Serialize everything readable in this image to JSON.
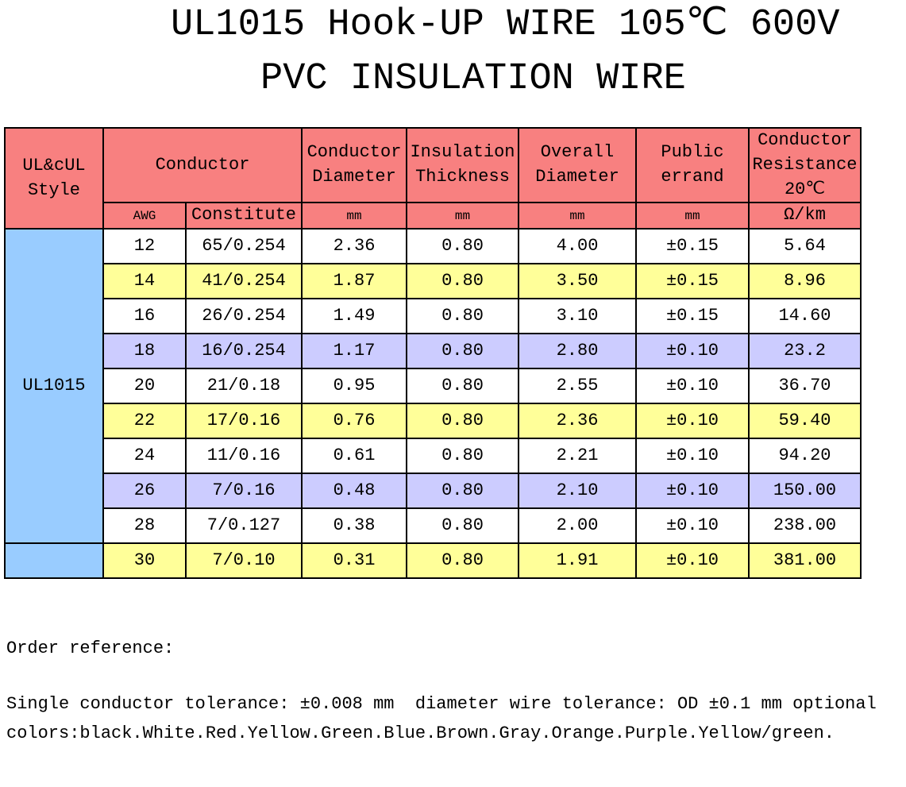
{
  "header": {
    "title_line1": "UL1015 Hook-UP WIRE 105℃ 600V",
    "title_line2": "PVC INSULATION WIRE"
  },
  "table": {
    "header_row1": [
      "UL&cUL Style",
      "Conductor",
      "Conductor Diameter",
      "Insulation Thickness",
      "Overall Diameter",
      "Public errand",
      "Conductor Resistance 20℃"
    ],
    "header_row2": [
      "AWG",
      "Constitute",
      "mm",
      "mm",
      "mm",
      "mm",
      "Ω/km"
    ],
    "style": "UL1015",
    "rows": [
      [
        "12",
        "65/0.254",
        "2.36",
        "0.80",
        "4.00",
        "±0.15",
        "5.64"
      ],
      [
        "14",
        "41/0.254",
        "1.87",
        "0.80",
        "3.50",
        "±0.15",
        "8.96"
      ],
      [
        "16",
        "26/0.254",
        "1.49",
        "0.80",
        "3.10",
        "±0.15",
        "14.60"
      ],
      [
        "18",
        "16/0.254",
        "1.17",
        "0.80",
        "2.80",
        "±0.10",
        "23.2"
      ],
      [
        "20",
        "21/0.18",
        "0.95",
        "0.80",
        "2.55",
        "±0.10",
        "36.70"
      ],
      [
        "22",
        "17/0.16",
        "0.76",
        "0.80",
        "2.36",
        "±0.10",
        "59.40"
      ],
      [
        "24",
        "11/0.16",
        "0.61",
        "0.80",
        "2.21",
        "±0.10",
        "94.20"
      ],
      [
        "26",
        "7/0.16",
        "0.48",
        "0.80",
        "2.10",
        "±0.10",
        "150.00"
      ],
      [
        "28",
        "7/0.127",
        "0.38",
        "0.80",
        "2.00",
        "±0.10",
        "238.00"
      ],
      [
        "30",
        "7/0.10",
        "0.31",
        "0.80",
        "1.91",
        "±0.10",
        "381.00"
      ]
    ]
  },
  "notes": [
    "Order reference:",
    "Single conductor tolerance: ±0.008 mm  diameter wire tolerance: OD ±0.1 mm optional",
    "colors:black.White.Red.Yellow.Green.Blue.Brown.Gray.Orange.Purple.Yellow/green."
  ]
}
